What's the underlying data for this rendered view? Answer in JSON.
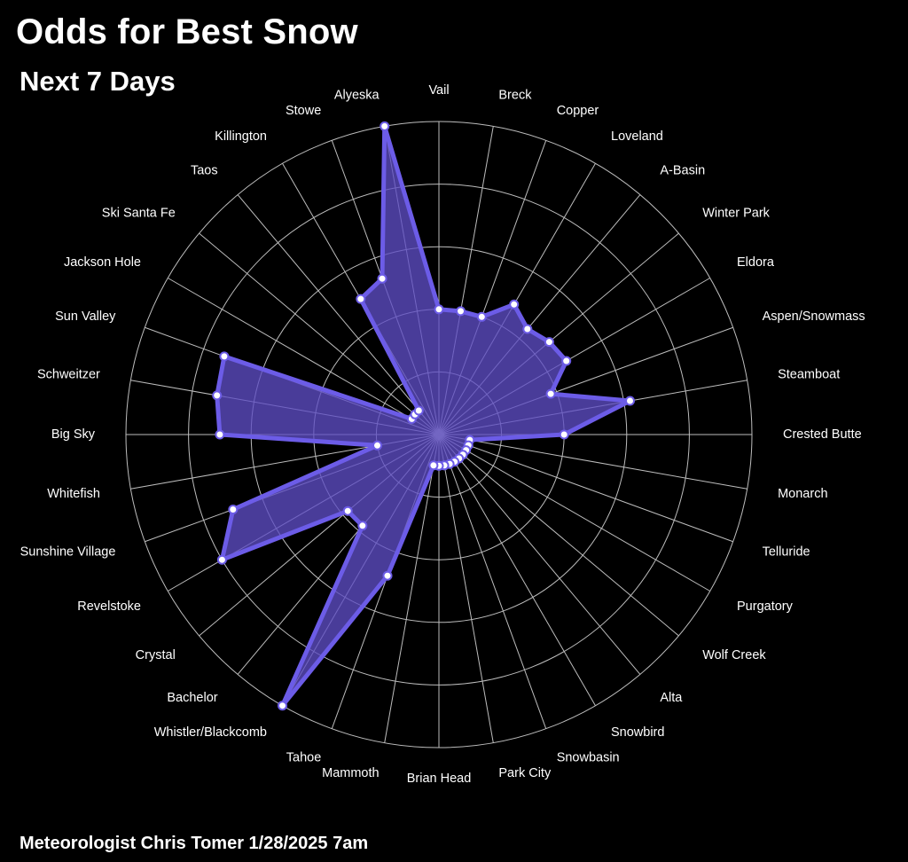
{
  "title": "Odds for Best Snow",
  "subtitle": "Next 7 Days",
  "footer": "Meteorologist Chris Tomer  1/28/2025 7am",
  "colors": {
    "background": "#000000",
    "fill": "#5e4dc4",
    "stroke": "#6c5ce7",
    "grid": "#bdbdbd",
    "marker": "#ffffff"
  },
  "chart_data": {
    "type": "radar",
    "title": "Odds for Best Snow",
    "subtitle": "Next 7 Days",
    "rmax": 100,
    "rings": [
      20,
      40,
      60,
      80,
      100
    ],
    "grid": true,
    "categories": [
      "Vail",
      "Breck",
      "Copper",
      "Loveland",
      "A-Basin",
      "Winter Park",
      "Eldora",
      "Aspen/Snowmass",
      "Steamboat",
      "Crested Butte",
      "Monarch",
      "Telluride",
      "Purgatory",
      "Wolf Creek",
      "Alta",
      "Snowbird",
      "Snowbasin",
      "Park City",
      "Brian Head",
      "Mammoth",
      "Tahoe",
      "Whistler/Blackcomb",
      "Bachelor",
      "Crystal",
      "Revelstoke",
      "Sunshine Village",
      "Whitefish",
      "Big Sky",
      "Schweitzer",
      "Sun Valley",
      "Jackson Hole",
      "Ski Santa Fe",
      "Taos",
      "Killington",
      "Stowe",
      "Alyeska"
    ],
    "series": [
      {
        "values": [
          40,
          40,
          40,
          48,
          44,
          46,
          47,
          38,
          62,
          40,
          10,
          10,
          10,
          10,
          10,
          10,
          10,
          10,
          10,
          10,
          48,
          100,
          38,
          38,
          80,
          70,
          20,
          70,
          72,
          73,
          10,
          10,
          10,
          50,
          53,
          100
        ]
      }
    ]
  }
}
